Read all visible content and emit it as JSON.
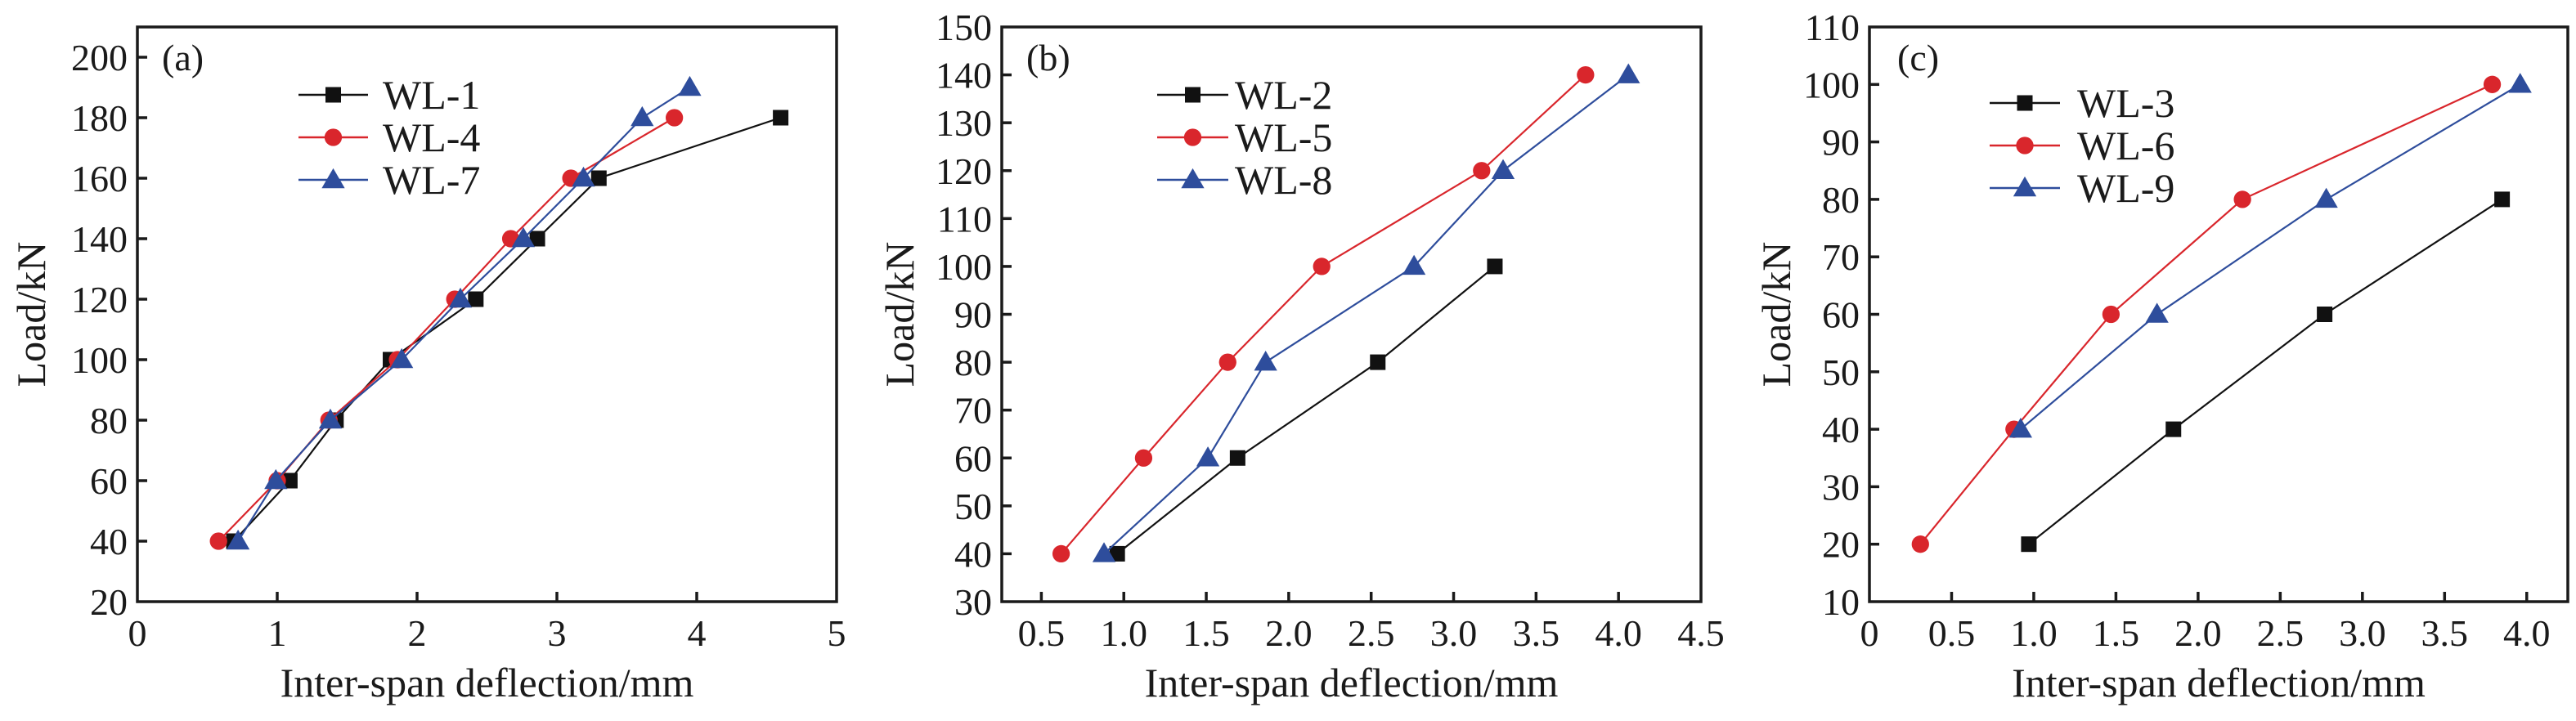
{
  "figure": {
    "colors": {
      "black": "#111111",
      "red": "#d9262c",
      "blue": "#2e4d9c"
    }
  },
  "chart_data": [
    {
      "type": "line",
      "panel_label": "(a)",
      "title": "",
      "xlabel": "Inter-span deflection/mm",
      "ylabel": "Load/kN",
      "xlim": [
        0,
        5
      ],
      "ylim": [
        20,
        210
      ],
      "xticks": [
        0,
        1,
        2,
        3,
        4,
        5
      ],
      "xtick_labels": [
        "0",
        "1",
        "2",
        "3",
        "4",
        "5"
      ],
      "yticks": [
        20,
        40,
        60,
        80,
        100,
        120,
        140,
        160,
        180,
        200
      ],
      "ytick_labels": [
        "20",
        "40",
        "60",
        "80",
        "100",
        "120",
        "140",
        "160",
        "180",
        "200"
      ],
      "grid": false,
      "legend_position": "top-center",
      "series": [
        {
          "name": "WL-1",
          "color": "#111111",
          "marker": "square",
          "x": [
            0.69,
            1.09,
            1.42,
            1.81,
            2.42,
            2.86,
            3.3,
            4.6
          ],
          "y": [
            40,
            60,
            80,
            100,
            120,
            140,
            160,
            180
          ]
        },
        {
          "name": "WL-4",
          "color": "#d9262c",
          "marker": "circle",
          "x": [
            0.58,
            1.0,
            1.37,
            1.86,
            2.27,
            2.67,
            3.1,
            3.84
          ],
          "y": [
            40,
            60,
            80,
            100,
            120,
            140,
            160,
            180
          ]
        },
        {
          "name": "WL-7",
          "color": "#2e4d9c",
          "marker": "triangle",
          "x": [
            0.72,
            0.99,
            1.38,
            1.89,
            2.31,
            2.76,
            3.19,
            3.61,
            3.95
          ],
          "y": [
            40,
            60,
            80,
            100,
            120,
            140,
            160,
            180,
            190
          ]
        }
      ]
    },
    {
      "type": "line",
      "panel_label": "(b)",
      "title": "",
      "xlabel": "Inter-span deflection/mm",
      "ylabel": "Load/kN",
      "xlim": [
        0.26,
        4.5
      ],
      "ylim": [
        30,
        150
      ],
      "xticks": [
        0.5,
        1.0,
        1.5,
        2.0,
        2.5,
        3.0,
        3.5,
        4.0,
        4.5
      ],
      "xtick_labels": [
        "0.5",
        "1.0",
        "1.5",
        "2.0",
        "2.5",
        "3.0",
        "3.5",
        "4.0",
        "4.5"
      ],
      "yticks": [
        30,
        40,
        50,
        60,
        70,
        80,
        90,
        100,
        110,
        120,
        130,
        140,
        150
      ],
      "ytick_labels": [
        "30",
        "40",
        "50",
        "60",
        "70",
        "80",
        "90",
        "100",
        "110",
        "120",
        "130",
        "140",
        "150"
      ],
      "grid": false,
      "legend_position": "top-center",
      "series": [
        {
          "name": "WL-2",
          "color": "#111111",
          "marker": "square",
          "x": [
            0.96,
            1.69,
            2.54,
            3.25
          ],
          "y": [
            40,
            60,
            80,
            100
          ]
        },
        {
          "name": "WL-5",
          "color": "#d9262c",
          "marker": "circle",
          "x": [
            0.62,
            1.12,
            1.63,
            2.2,
            3.17,
            3.8
          ],
          "y": [
            40,
            60,
            80,
            100,
            120,
            140
          ]
        },
        {
          "name": "WL-8",
          "color": "#2e4d9c",
          "marker": "triangle",
          "x": [
            0.88,
            1.51,
            1.86,
            2.76,
            3.3,
            4.06
          ],
          "y": [
            40,
            60,
            80,
            100,
            120,
            140
          ]
        }
      ]
    },
    {
      "type": "line",
      "panel_label": "(c)",
      "title": "",
      "xlabel": "Inter-span deflection/mm",
      "ylabel": "Load/kN",
      "xlim": [
        0,
        4.25
      ],
      "ylim": [
        10,
        110
      ],
      "xticks": [
        0,
        0.5,
        1.0,
        1.5,
        2.0,
        2.5,
        3.0,
        3.5,
        4.0
      ],
      "xtick_labels": [
        "0",
        "0.5",
        "1.0",
        "1.5",
        "2.0",
        "2.5",
        "3.0",
        "3.5",
        "4.0"
      ],
      "yticks": [
        10,
        20,
        30,
        40,
        50,
        60,
        70,
        80,
        90,
        100,
        110
      ],
      "ytick_labels": [
        "10",
        "20",
        "30",
        "40",
        "50",
        "60",
        "70",
        "80",
        "90",
        "100",
        "110"
      ],
      "grid": false,
      "legend_position": "top-center",
      "series": [
        {
          "name": "WL-3",
          "color": "#111111",
          "marker": "square",
          "x": [
            0.97,
            1.85,
            2.77,
            3.85
          ],
          "y": [
            20,
            40,
            60,
            80
          ]
        },
        {
          "name": "WL-6",
          "color": "#d9262c",
          "marker": "circle",
          "x": [
            0.31,
            0.88,
            1.47,
            2.27,
            3.79
          ],
          "y": [
            20,
            40,
            60,
            80,
            100
          ]
        },
        {
          "name": "WL-9",
          "color": "#2e4d9c",
          "marker": "triangle",
          "x": [
            0.92,
            1.75,
            2.78,
            3.96
          ],
          "y": [
            40,
            60,
            80,
            100
          ]
        }
      ]
    }
  ]
}
